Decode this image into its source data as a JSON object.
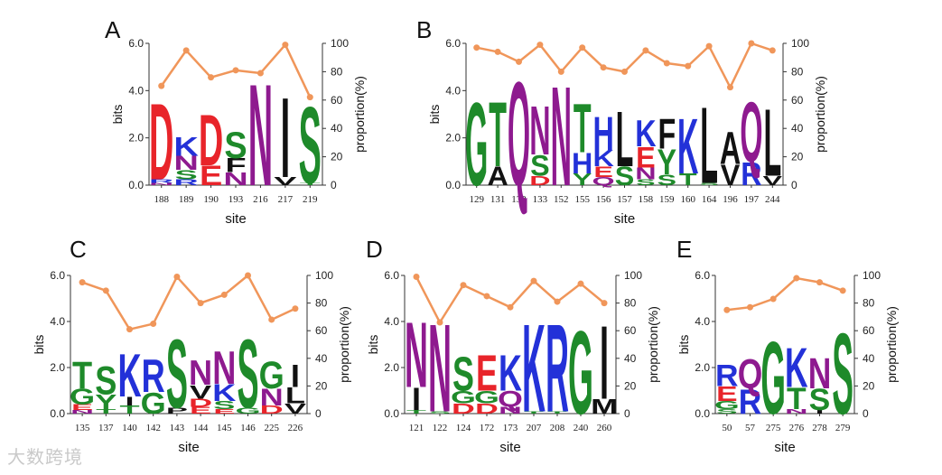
{
  "watermark": "大数跨境",
  "colors": {
    "line": "#f0965a",
    "axis": "#333333",
    "residues": {
      "D": "#e8242a",
      "E": "#e8242a",
      "K": "#2331d8",
      "R": "#2331d8",
      "H": "#2331d8",
      "N": "#8e1a8f",
      "Q": "#8e1a8f",
      "S": "#1e8a2a",
      "T": "#1e8a2a",
      "G": "#1e8a2a",
      "Y": "#1e8a2a",
      "C": "#1e8a2a",
      "L": "#111111",
      "I": "#111111",
      "V": "#111111",
      "A": "#111111",
      "M": "#111111",
      "P": "#111111",
      "F": "#111111",
      "W": "#111111"
    }
  },
  "chart_data": [
    {
      "type": "sequence-logo",
      "panel_label": "A",
      "xlabel": "site",
      "ylabel_left": "bits",
      "ylabel_right": "proportion(%)",
      "ylim_left": [
        0,
        6
      ],
      "ylim_right": [
        0,
        100
      ],
      "yticks_left": [
        "0.0",
        "2.0",
        "4.0",
        "6.0"
      ],
      "yticks_right": [
        "0",
        "20",
        "40",
        "60",
        "80",
        "100"
      ],
      "sites": [
        "188",
        "189",
        "190",
        "193",
        "216",
        "217",
        "219"
      ],
      "proportion": [
        70,
        95,
        76,
        81,
        79,
        99,
        62
      ],
      "stacks": [
        [
          [
            "D",
            3.3
          ],
          [
            "R",
            0.15
          ],
          [
            "N",
            0.1
          ]
        ],
        [
          [
            "K",
            0.8
          ],
          [
            "N",
            0.6
          ],
          [
            "S",
            0.4
          ],
          [
            "R",
            0.25
          ]
        ],
        [
          [
            "D",
            2.2
          ],
          [
            "E",
            0.85
          ]
        ],
        [
          [
            "S",
            1.15
          ],
          [
            "F",
            0.6
          ],
          [
            "N",
            0.55
          ]
        ],
        [
          [
            "N",
            4.4
          ]
        ],
        [
          [
            "I",
            3.45
          ],
          [
            "V",
            0.35
          ]
        ],
        [
          [
            "S",
            3.3
          ],
          [
            "T",
            0.1
          ]
        ]
      ]
    },
    {
      "type": "sequence-logo",
      "panel_label": "B",
      "xlabel": "site",
      "ylabel_left": "bits",
      "ylabel_right": "proportion(%)",
      "ylim_left": [
        0,
        6
      ],
      "ylim_right": [
        0,
        100
      ],
      "yticks_left": [
        "0.0",
        "2.0",
        "4.0",
        "6.0"
      ],
      "yticks_right": [
        "0",
        "20",
        "40",
        "60",
        "80",
        "100"
      ],
      "sites": [
        "129",
        "131",
        "132",
        "133",
        "152",
        "155",
        "156",
        "157",
        "158",
        "159",
        "160",
        "164",
        "196",
        "197",
        "244"
      ],
      "proportion": [
        97,
        94,
        87,
        99,
        80,
        97,
        83,
        80,
        95,
        86,
        84,
        98,
        69,
        100,
        95
      ],
      "stacks": [
        [
          [
            "G",
            3.6
          ]
        ],
        [
          [
            "T",
            2.8
          ],
          [
            "A",
            0.8
          ]
        ],
        [
          [
            "Q",
            4.5
          ]
        ],
        [
          [
            "N",
            2.1
          ],
          [
            "S",
            0.9
          ],
          [
            "D",
            0.4
          ]
        ],
        [
          [
            "N",
            4.3
          ]
        ],
        [
          [
            "T",
            2.1
          ],
          [
            "H",
            0.9
          ],
          [
            "Y",
            0.5
          ]
        ],
        [
          [
            "H",
            1.45
          ],
          [
            "K",
            0.7
          ],
          [
            "E",
            0.45
          ],
          [
            "Q",
            0.35
          ]
        ],
        [
          [
            "L",
            2.4
          ],
          [
            "S",
            0.8
          ]
        ],
        [
          [
            "K",
            1.15
          ],
          [
            "E",
            0.9
          ],
          [
            "N",
            0.5
          ],
          [
            "S",
            0.25
          ]
        ],
        [
          [
            "F",
            1.3
          ],
          [
            "Y",
            1.1
          ],
          [
            "S",
            0.45
          ]
        ],
        [
          [
            "K",
            2.4
          ],
          [
            "T",
            0.5
          ]
        ],
        [
          [
            "L",
            3.3
          ],
          [
            "S",
            0.1
          ]
        ],
        [
          [
            "A",
            1.4
          ],
          [
            "V",
            0.9
          ]
        ],
        [
          [
            "Q",
            2.6
          ],
          [
            "R",
            1.0
          ]
        ],
        [
          [
            "L",
            2.9
          ],
          [
            "V",
            0.4
          ]
        ]
      ]
    },
    {
      "type": "sequence-logo",
      "panel_label": "C",
      "xlabel": "site",
      "ylabel_left": "bits",
      "ylabel_right": "proportion(%)",
      "ylim_left": [
        0,
        6
      ],
      "ylim_right": [
        0,
        100
      ],
      "yticks_left": [
        "0.0",
        "2.0",
        "4.0",
        "6.0"
      ],
      "yticks_right": [
        "0",
        "20",
        "40",
        "60",
        "80",
        "100"
      ],
      "sites": [
        "135",
        "137",
        "140",
        "142",
        "143",
        "144",
        "145",
        "146",
        "225",
        "226"
      ],
      "proportion": [
        95,
        89,
        61,
        65,
        99,
        80,
        86,
        100,
        68,
        76
      ],
      "stacks": [
        [
          [
            "T",
            1.2
          ],
          [
            "G",
            0.7
          ],
          [
            "E",
            0.25
          ],
          [
            "N",
            0.15
          ]
        ],
        [
          [
            "S",
            1.25
          ],
          [
            "Y",
            0.65
          ],
          [
            "T",
            0.2
          ]
        ],
        [
          [
            "K",
            1.9
          ],
          [
            "I",
            0.4
          ],
          [
            "T",
            0.35
          ]
        ],
        [
          [
            "R",
            1.45
          ],
          [
            "G",
            0.95
          ]
        ],
        [
          [
            "S",
            3.05
          ],
          [
            "P",
            0.25
          ]
        ],
        [
          [
            "N",
            1.1
          ],
          [
            "V",
            0.6
          ],
          [
            "D",
            0.35
          ],
          [
            "E",
            0.3
          ]
        ],
        [
          [
            "N",
            1.45
          ],
          [
            "K",
            0.75
          ],
          [
            "S",
            0.35
          ],
          [
            "E",
            0.2
          ]
        ],
        [
          [
            "S",
            3.05
          ],
          [
            "G",
            0.25
          ]
        ],
        [
          [
            "G",
            1.2
          ],
          [
            "N",
            0.75
          ],
          [
            "D",
            0.35
          ]
        ],
        [
          [
            "I",
            1.0
          ],
          [
            "L",
            0.7
          ],
          [
            "V",
            0.45
          ]
        ]
      ]
    },
    {
      "type": "sequence-logo",
      "panel_label": "D",
      "xlabel": "site",
      "ylabel_left": "bits",
      "ylabel_right": "proportion(%)",
      "ylim_left": [
        0,
        6
      ],
      "ylim_right": [
        0,
        100
      ],
      "yticks_left": [
        "0.0",
        "2.0",
        "4.0",
        "6.0"
      ],
      "yticks_right": [
        "0",
        "20",
        "40",
        "60",
        "80",
        "100"
      ],
      "sites": [
        "121",
        "122",
        "124",
        "172",
        "173",
        "207",
        "208",
        "240",
        "260"
      ],
      "proportion": [
        99,
        66,
        93,
        85,
        77,
        96,
        81,
        94,
        80
      ],
      "stacks": [
        [
          [
            "N",
            2.9
          ],
          [
            "I",
            1.0
          ],
          [
            "T",
            0.15
          ]
        ],
        [
          [
            "N",
            3.9
          ],
          [
            "S",
            0.1
          ]
        ],
        [
          [
            "S",
            1.5
          ],
          [
            "G",
            0.55
          ],
          [
            "D",
            0.45
          ]
        ],
        [
          [
            "E",
            1.6
          ],
          [
            "G",
            0.55
          ],
          [
            "D",
            0.45
          ]
        ],
        [
          [
            "K",
            1.6
          ],
          [
            "Q",
            0.7
          ],
          [
            "N",
            0.3
          ]
        ],
        [
          [
            "K",
            3.9
          ],
          [
            "T",
            0.1
          ]
        ],
        [
          [
            "R",
            3.9
          ],
          [
            "T",
            0.1
          ]
        ],
        [
          [
            "G",
            3.7
          ]
        ],
        [
          [
            "I",
            3.25
          ],
          [
            "M",
            0.65
          ]
        ]
      ]
    },
    {
      "type": "sequence-logo",
      "panel_label": "E",
      "xlabel": "site",
      "ylabel_left": "bits",
      "ylabel_right": "proportion(%)",
      "ylim_left": [
        0,
        6
      ],
      "ylim_right": [
        0,
        100
      ],
      "yticks_left": [
        "0.0",
        "2.0",
        "4.0",
        "6.0"
      ],
      "yticks_right": [
        "0",
        "20",
        "40",
        "60",
        "80",
        "100"
      ],
      "sites": [
        "50",
        "57",
        "275",
        "276",
        "278",
        "279"
      ],
      "proportion": [
        75,
        77,
        83,
        98,
        95,
        89
      ],
      "stacks": [
        [
          [
            "R",
            0.95
          ],
          [
            "E",
            0.65
          ],
          [
            "G",
            0.35
          ],
          [
            "S",
            0.2
          ]
        ],
        [
          [
            "Q",
            1.3
          ],
          [
            "R",
            1.1
          ]
        ],
        [
          [
            "G",
            3.2
          ]
        ],
        [
          [
            "K",
            1.75
          ],
          [
            "T",
            0.95
          ],
          [
            "N",
            0.2
          ]
        ],
        [
          [
            "N",
            1.35
          ],
          [
            "S",
            0.95
          ],
          [
            "I",
            0.15
          ]
        ],
        [
          [
            "S",
            3.6
          ]
        ]
      ]
    }
  ]
}
